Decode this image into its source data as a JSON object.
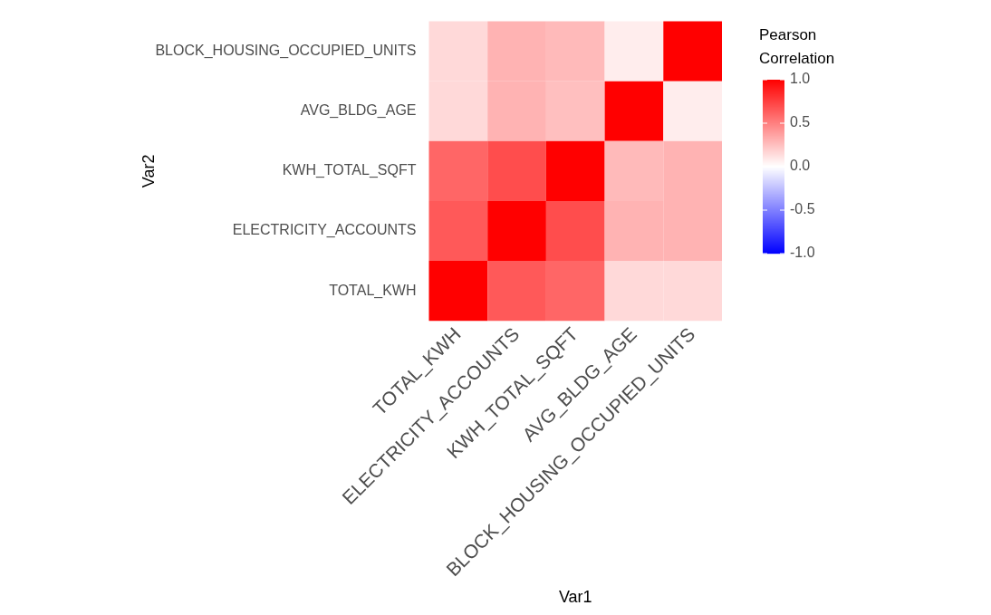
{
  "chart_data": {
    "type": "heatmap",
    "xlabel": "Var1",
    "ylabel": "Var2",
    "clabel": "Pearson Correlation",
    "categories": [
      "TOTAL_KWH",
      "ELECTRICITY_ACCOUNTS",
      "KWH_TOTAL_SQFT",
      "AVG_BLDG_AGE",
      "BLOCK_HOUSING_OCCUPIED_UNITS"
    ],
    "y_categories": [
      "BLOCK_HOUSING_OCCUPIED_UNITS",
      "AVG_BLDG_AGE",
      "KWH_TOTAL_SQFT",
      "ELECTRICITY_ACCOUNTS",
      "TOTAL_KWH"
    ],
    "cells": [
      [
        0.15,
        0.3,
        0.27,
        0.07,
        1
      ],
      [
        0.15,
        0.3,
        0.25,
        1,
        0.07
      ],
      [
        0.6,
        0.7,
        1,
        0.27,
        0.3
      ],
      [
        0.65,
        1,
        0.7,
        0.3,
        0.3
      ],
      [
        1,
        0.65,
        0.6,
        0.15,
        0.15
      ]
    ],
    "clim": [
      -1,
      1
    ],
    "cticks": [
      {
        "value": 1,
        "label": "1.0"
      },
      {
        "value": 0.5,
        "label": "0.5"
      },
      {
        "value": 0,
        "label": "0.0"
      },
      {
        "value": -0.5,
        "label": "-0.5"
      },
      {
        "value": -1,
        "label": "-1.0"
      }
    ],
    "grid": false
  }
}
